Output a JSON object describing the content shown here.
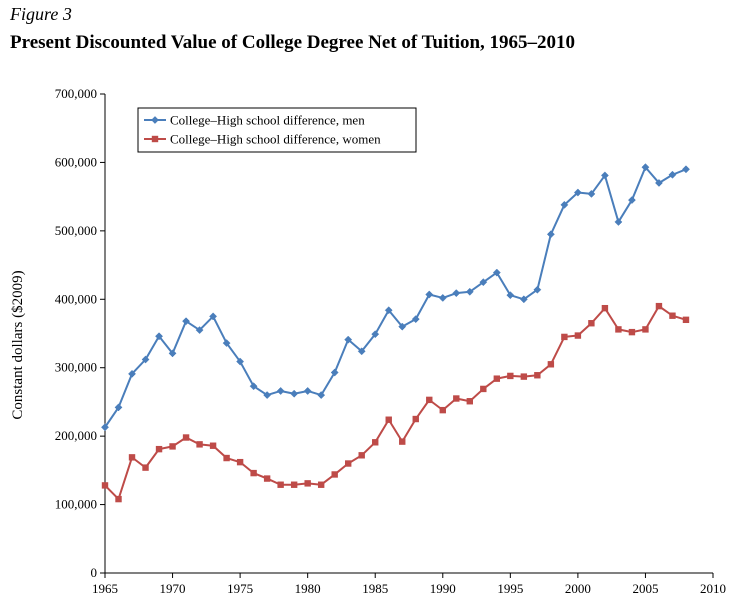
{
  "figure_label": "Figure 3",
  "chart_data": {
    "type": "line",
    "title": "Present Discounted Value of College Degree Net of Tuition, 1965–2010",
    "xlabel": "",
    "ylabel": "Constant dollars ($2009)",
    "xlim": [
      1965,
      2010
    ],
    "ylim": [
      0,
      700000
    ],
    "x_ticks": [
      1965,
      1970,
      1975,
      1980,
      1985,
      1990,
      1995,
      2000,
      2005,
      2010
    ],
    "y_ticks": [
      0,
      100000,
      200000,
      300000,
      400000,
      500000,
      600000,
      700000
    ],
    "y_tick_labels": [
      "0",
      "100,000",
      "200,000",
      "300,000",
      "400,000",
      "500,000",
      "600,000",
      "700,000"
    ],
    "grid": false,
    "legend_position": "top-left",
    "x": [
      1965,
      1966,
      1967,
      1968,
      1969,
      1970,
      1971,
      1972,
      1973,
      1974,
      1975,
      1976,
      1977,
      1978,
      1979,
      1980,
      1981,
      1982,
      1983,
      1984,
      1985,
      1986,
      1987,
      1988,
      1989,
      1990,
      1991,
      1992,
      1993,
      1994,
      1995,
      1996,
      1997,
      1998,
      1999,
      2000,
      2001,
      2002,
      2003,
      2004,
      2005,
      2006,
      2007,
      2008
    ],
    "series": [
      {
        "name": "College–High school difference, men",
        "color": "#4a7ebb",
        "marker": "diamond",
        "values": [
          213000,
          242000,
          291000,
          312000,
          346000,
          321000,
          368000,
          355000,
          375000,
          336000,
          309000,
          273000,
          260000,
          266000,
          262000,
          266000,
          260000,
          293000,
          341000,
          324000,
          349000,
          384000,
          360000,
          371000,
          407000,
          402000,
          409000,
          411000,
          425000,
          439000,
          406000,
          400000,
          414000,
          495000,
          538000,
          556000,
          554000,
          581000,
          513000,
          545000,
          593000,
          570000,
          582000,
          590000
        ]
      },
      {
        "name": "College–High school difference, women",
        "color": "#be4b48",
        "marker": "square",
        "values": [
          128000,
          108000,
          169000,
          154000,
          181000,
          185000,
          198000,
          188000,
          186000,
          168000,
          162000,
          146000,
          138000,
          129000,
          129000,
          131000,
          129000,
          144000,
          160000,
          172000,
          191000,
          224000,
          192000,
          225000,
          253000,
          238000,
          255000,
          251000,
          269000,
          284000,
          288000,
          287000,
          289000,
          305000,
          345000,
          347000,
          365000,
          387000,
          356000,
          352000,
          356000,
          390000,
          376000,
          370000
        ]
      }
    ]
  }
}
